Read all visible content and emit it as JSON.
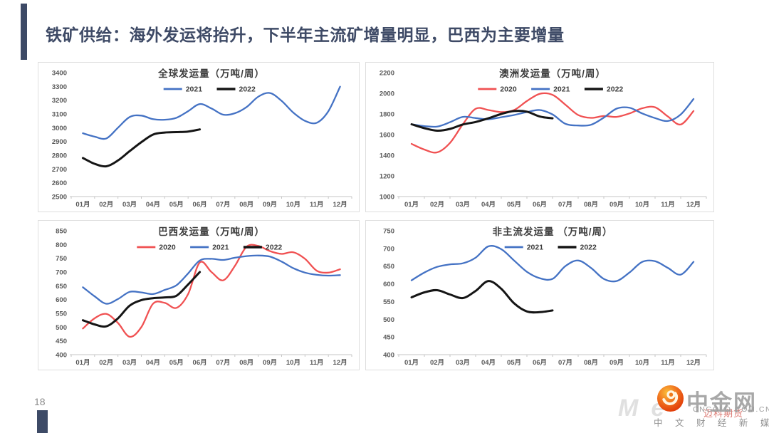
{
  "page": {
    "title": "铁矿供给：海外发运将抬升，下半年主流矿增量明显，巴西为主要增量",
    "page_number": "18",
    "accent_color": "#3D4A66"
  },
  "footer": {
    "logo": {
      "brand": "中金网",
      "domain": "CNGOLD.COM.CN",
      "tagline": "中 文 财 经 新 媒 体",
      "watermark_latin": "Me",
      "watermark_cn": "迈科期货"
    }
  },
  "chart_style": {
    "axis_text_color": "#595959",
    "title_color": "#3D3D3D",
    "axis_line_color": "#C6C6C6",
    "grid": "off",
    "legend_position": "top"
  },
  "chart_data": [
    {
      "type": "line",
      "title": "全球发运量（万吨/周）",
      "ylim": [
        2500,
        3400
      ],
      "ystep": 100,
      "x_labels": [
        "01月",
        "02月",
        "03月",
        "04月",
        "05月",
        "06月",
        "07月",
        "08月",
        "09月",
        "10月",
        "11月",
        "12月"
      ],
      "series": [
        {
          "name": "2021",
          "color": "#4472C4",
          "line_width": 2.3,
          "x_start": 1,
          "x_step": 0.5,
          "values": [
            2960,
            2935,
            2922,
            3000,
            3078,
            3088,
            3062,
            3058,
            3072,
            3120,
            3172,
            3140,
            3095,
            3105,
            3150,
            3225,
            3252,
            3195,
            3110,
            3050,
            3036,
            3120,
            3298
          ]
        },
        {
          "name": "2022",
          "color": "#151515",
          "line_width": 3.0,
          "x_start": 1,
          "x_step": 0.5,
          "values": [
            2780,
            2738,
            2720,
            2762,
            2830,
            2895,
            2950,
            2965,
            2968,
            2972,
            2988
          ]
        }
      ]
    },
    {
      "type": "line",
      "title": "澳洲发运量（万吨/周）",
      "ylim": [
        1000,
        2200
      ],
      "ystep": 200,
      "x_labels": [
        "01月",
        "02月",
        "03月",
        "04月",
        "05月",
        "06月",
        "07月",
        "08月",
        "09月",
        "10月",
        "11月",
        "12月"
      ],
      "series": [
        {
          "name": "2020",
          "color": "#F05152",
          "line_width": 2.3,
          "x_start": 1,
          "x_step": 0.5,
          "values": [
            1510,
            1455,
            1428,
            1520,
            1700,
            1850,
            1838,
            1818,
            1838,
            1925,
            1995,
            1985,
            1890,
            1790,
            1762,
            1780,
            1772,
            1805,
            1855,
            1865,
            1775,
            1698,
            1828
          ]
        },
        {
          "name": "2021",
          "color": "#4472C4",
          "line_width": 2.3,
          "x_start": 1,
          "x_step": 0.5,
          "values": [
            1700,
            1682,
            1678,
            1720,
            1772,
            1760,
            1748,
            1768,
            1790,
            1818,
            1838,
            1795,
            1705,
            1688,
            1695,
            1765,
            1852,
            1860,
            1805,
            1760,
            1732,
            1795,
            1945
          ]
        },
        {
          "name": "2022",
          "color": "#151515",
          "line_width": 3.0,
          "x_start": 1,
          "x_step": 0.5,
          "values": [
            1700,
            1662,
            1638,
            1655,
            1698,
            1722,
            1758,
            1800,
            1828,
            1822,
            1775,
            1758
          ]
        }
      ]
    },
    {
      "type": "line",
      "title": "巴西发运量（万吨/周）",
      "ylim": [
        400,
        850
      ],
      "ystep": 50,
      "x_labels": [
        "01月",
        "02月",
        "03月",
        "04月",
        "05月",
        "06月",
        "07月",
        "08月",
        "09月",
        "10月",
        "11月",
        "12月"
      ],
      "series": [
        {
          "name": "2020",
          "color": "#F05152",
          "line_width": 2.3,
          "x_start": 1,
          "x_step": 0.5,
          "values": [
            495,
            532,
            548,
            515,
            465,
            500,
            585,
            588,
            570,
            620,
            735,
            700,
            670,
            722,
            792,
            795,
            776,
            766,
            772,
            748,
            705,
            698,
            710
          ]
        },
        {
          "name": "2021",
          "color": "#4472C4",
          "line_width": 2.3,
          "x_start": 1,
          "x_step": 0.5,
          "values": [
            645,
            612,
            585,
            602,
            628,
            626,
            620,
            635,
            652,
            695,
            742,
            748,
            744,
            752,
            758,
            760,
            756,
            738,
            714,
            698,
            690,
            687,
            689
          ]
        },
        {
          "name": "2022",
          "color": "#151515",
          "line_width": 3.0,
          "x_start": 1,
          "x_step": 0.5,
          "values": [
            525,
            510,
            503,
            532,
            578,
            598,
            605,
            608,
            614,
            655,
            700
          ]
        }
      ]
    },
    {
      "type": "line",
      "title": "非主流发运量 （万吨/周）",
      "ylim": [
        400,
        750
      ],
      "ystep": 50,
      "x_labels": [
        "01月",
        "02月",
        "03月",
        "04月",
        "05月",
        "06月",
        "07月",
        "08月",
        "09月",
        "10月",
        "11月",
        "12月"
      ],
      "series": [
        {
          "name": "2021",
          "color": "#4472C4",
          "line_width": 2.3,
          "x_start": 1,
          "x_step": 0.5,
          "values": [
            610,
            632,
            648,
            655,
            658,
            674,
            706,
            698,
            666,
            634,
            616,
            614,
            650,
            666,
            645,
            614,
            608,
            632,
            662,
            664,
            645,
            626,
            662
          ]
        },
        {
          "name": "2022",
          "color": "#151515",
          "line_width": 3.0,
          "x_start": 1,
          "x_step": 0.5,
          "values": [
            562,
            576,
            582,
            570,
            560,
            580,
            608,
            586,
            545,
            522,
            520,
            525
          ]
        }
      ]
    }
  ]
}
